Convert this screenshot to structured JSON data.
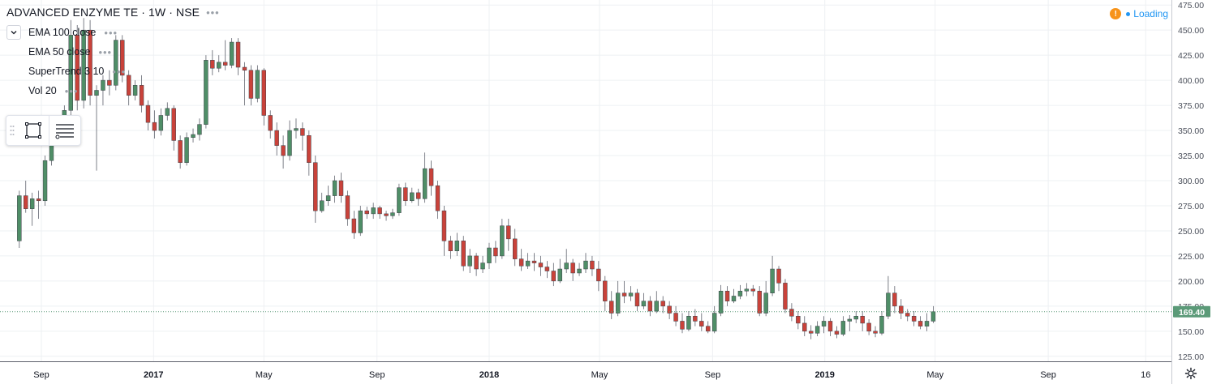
{
  "header": {
    "symbol_title": "ADVANCED ENZYME TE · 1W · NSE",
    "menu_dots": "•••"
  },
  "indicators": [
    {
      "label": "EMA 100 close",
      "menu_dots": "•••"
    },
    {
      "label": "EMA 50 close",
      "menu_dots": "•••"
    },
    {
      "label": "SuperTrend 3 10",
      "menu_dots": "•••"
    },
    {
      "label": "Vol 20",
      "menu_dots": "•••"
    }
  ],
  "status": {
    "warning_glyph": "!",
    "loading_text": "Loading"
  },
  "icons": {
    "collapse": "chevron-down-icon",
    "drag": "drag-handle-icon",
    "rectangle": "rectangle-tool-icon",
    "lines": "object-tree-icon",
    "settings": "gear-icon"
  },
  "colors": {
    "up": "#4f8e67",
    "down": "#c9423a",
    "price_tag": "#5b9a78",
    "grid": "#eef0f3",
    "axis_text": "#4a4f5a"
  },
  "chart_data": {
    "type": "candlestick",
    "symbol": "ADVANCED ENZYME TE",
    "interval": "1W",
    "exchange": "NSE",
    "y_axis": {
      "ylim": [
        120,
        480
      ],
      "ticks": [
        "475.00",
        "450.00",
        "425.00",
        "400.00",
        "375.00",
        "350.00",
        "325.00",
        "300.00",
        "275.00",
        "250.00",
        "225.00",
        "200.00",
        "175.00",
        "150.00",
        "125.00"
      ]
    },
    "x_axis": {
      "labels": [
        "Sep",
        "2017",
        "May",
        "Sep",
        "2018",
        "May",
        "Sep",
        "2019",
        "May",
        "Sep",
        "16"
      ],
      "bold": [
        "2017",
        "2018",
        "2019"
      ],
      "label_dates": [
        "2016-09-01",
        "2017-01-01",
        "2017-05-01",
        "2017-09-01",
        "2018-01-01",
        "2018-05-01",
        "2018-09-01",
        "2019-01-01",
        "2019-05-01",
        "2019-09-01",
        "2019-12-16"
      ],
      "range": [
        "2016-07-18",
        "2020-01-13"
      ]
    },
    "last_price": 169.4,
    "last_price_label": "169.40",
    "first_candle_date": "2016-08-08",
    "candles": [
      [
        240,
        285,
        233,
        290
      ],
      [
        285,
        272,
        268,
        300
      ],
      [
        272,
        282,
        255,
        288
      ],
      [
        282,
        280,
        262,
        290
      ],
      [
        280,
        320,
        275,
        325
      ],
      [
        320,
        340,
        315,
        345
      ],
      [
        340,
        355,
        335,
        360
      ],
      [
        355,
        370,
        350,
        375
      ],
      [
        370,
        445,
        365,
        460
      ],
      [
        445,
        380,
        370,
        455
      ],
      [
        380,
        450,
        372,
        462
      ],
      [
        450,
        385,
        375,
        460
      ],
      [
        385,
        390,
        310,
        395
      ],
      [
        390,
        400,
        375,
        405
      ],
      [
        400,
        395,
        385,
        410
      ],
      [
        395,
        440,
        390,
        445
      ],
      [
        440,
        405,
        398,
        445
      ],
      [
        405,
        385,
        375,
        410
      ],
      [
        385,
        395,
        380,
        400
      ],
      [
        395,
        375,
        368,
        405
      ],
      [
        375,
        358,
        350,
        380
      ],
      [
        358,
        350,
        342,
        370
      ],
      [
        350,
        365,
        345,
        372
      ],
      [
        365,
        372,
        360,
        378
      ],
      [
        372,
        340,
        330,
        375
      ],
      [
        340,
        318,
        312,
        345
      ],
      [
        318,
        343,
        315,
        348
      ],
      [
        343,
        346,
        338,
        352
      ],
      [
        346,
        356,
        340,
        362
      ],
      [
        356,
        420,
        352,
        425
      ],
      [
        420,
        412,
        405,
        430
      ],
      [
        412,
        418,
        408,
        425
      ],
      [
        418,
        415,
        410,
        440
      ],
      [
        415,
        438,
        412,
        442
      ],
      [
        438,
        413,
        405,
        442
      ],
      [
        413,
        410,
        375,
        418
      ],
      [
        410,
        382,
        375,
        415
      ],
      [
        382,
        410,
        378,
        415
      ],
      [
        410,
        365,
        355,
        412
      ],
      [
        365,
        350,
        342,
        370
      ],
      [
        350,
        335,
        325,
        358
      ],
      [
        335,
        325,
        312,
        345
      ],
      [
        325,
        350,
        320,
        360
      ],
      [
        350,
        352,
        342,
        362
      ],
      [
        352,
        345,
        330,
        358
      ],
      [
        345,
        318,
        305,
        350
      ],
      [
        318,
        270,
        258,
        325
      ],
      [
        270,
        280,
        268,
        288
      ],
      [
        280,
        285,
        275,
        295
      ],
      [
        285,
        300,
        278,
        305
      ],
      [
        300,
        285,
        278,
        308
      ],
      [
        285,
        262,
        255,
        290
      ],
      [
        262,
        248,
        242,
        270
      ],
      [
        248,
        270,
        245,
        275
      ],
      [
        270,
        267,
        262,
        274
      ],
      [
        267,
        273,
        262,
        278
      ],
      [
        273,
        267,
        262,
        275
      ],
      [
        267,
        265,
        260,
        270
      ],
      [
        265,
        268,
        262,
        272
      ],
      [
        268,
        293,
        265,
        297
      ],
      [
        293,
        280,
        275,
        298
      ],
      [
        280,
        288,
        278,
        293
      ],
      [
        288,
        282,
        275,
        292
      ],
      [
        282,
        312,
        278,
        328
      ],
      [
        312,
        295,
        285,
        320
      ],
      [
        295,
        270,
        262,
        300
      ],
      [
        270,
        240,
        225,
        275
      ],
      [
        240,
        230,
        222,
        245
      ],
      [
        230,
        240,
        225,
        248
      ],
      [
        240,
        215,
        210,
        245
      ],
      [
        215,
        225,
        208,
        232
      ],
      [
        225,
        212,
        205,
        228
      ],
      [
        212,
        218,
        208,
        225
      ],
      [
        218,
        233,
        212,
        238
      ],
      [
        233,
        225,
        218,
        240
      ],
      [
        225,
        255,
        222,
        262
      ],
      [
        255,
        242,
        230,
        262
      ],
      [
        242,
        222,
        215,
        252
      ],
      [
        222,
        215,
        210,
        232
      ],
      [
        215,
        220,
        212,
        228
      ],
      [
        220,
        218,
        210,
        228
      ],
      [
        218,
        214,
        205,
        225
      ],
      [
        214,
        210,
        203,
        220
      ],
      [
        210,
        200,
        195,
        218
      ],
      [
        200,
        212,
        198,
        222
      ],
      [
        212,
        218,
        208,
        232
      ],
      [
        218,
        208,
        200,
        222
      ],
      [
        208,
        212,
        205,
        218
      ],
      [
        212,
        220,
        208,
        228
      ],
      [
        220,
        212,
        205,
        225
      ],
      [
        212,
        200,
        190,
        220
      ],
      [
        200,
        180,
        170,
        205
      ],
      [
        180,
        168,
        162,
        190
      ],
      [
        168,
        188,
        165,
        200
      ],
      [
        188,
        185,
        178,
        200
      ],
      [
        185,
        188,
        180,
        195
      ],
      [
        188,
        175,
        170,
        192
      ],
      [
        175,
        180,
        172,
        188
      ],
      [
        180,
        170,
        165,
        185
      ],
      [
        170,
        180,
        168,
        190
      ],
      [
        180,
        175,
        168,
        185
      ],
      [
        175,
        168,
        162,
        180
      ],
      [
        168,
        160,
        155,
        175
      ],
      [
        160,
        152,
        148,
        168
      ],
      [
        152,
        165,
        150,
        170
      ],
      [
        165,
        160,
        155,
        172
      ],
      [
        160,
        155,
        150,
        168
      ],
      [
        155,
        150,
        148,
        160
      ],
      [
        150,
        168,
        148,
        175
      ],
      [
        168,
        190,
        165,
        196
      ],
      [
        190,
        180,
        175,
        195
      ],
      [
        180,
        185,
        178,
        192
      ],
      [
        185,
        190,
        182,
        196
      ],
      [
        190,
        192,
        185,
        198
      ],
      [
        192,
        190,
        185,
        196
      ],
      [
        190,
        168,
        165,
        195
      ],
      [
        168,
        188,
        165,
        200
      ],
      [
        188,
        212,
        185,
        225
      ],
      [
        212,
        198,
        190,
        215
      ],
      [
        198,
        172,
        168,
        202
      ],
      [
        172,
        165,
        160,
        178
      ],
      [
        165,
        158,
        152,
        170
      ],
      [
        158,
        150,
        145,
        165
      ],
      [
        150,
        148,
        142,
        156
      ],
      [
        148,
        155,
        145,
        160
      ],
      [
        155,
        160,
        148,
        165
      ],
      [
        160,
        150,
        145,
        163
      ],
      [
        150,
        147,
        143,
        155
      ],
      [
        147,
        160,
        145,
        165
      ],
      [
        160,
        162,
        150,
        166
      ],
      [
        162,
        165,
        158,
        170
      ],
      [
        165,
        158,
        150,
        170
      ],
      [
        158,
        150,
        146,
        162
      ],
      [
        150,
        148,
        144,
        155
      ],
      [
        148,
        165,
        146,
        170
      ],
      [
        165,
        188,
        162,
        205
      ],
      [
        188,
        175,
        168,
        195
      ],
      [
        175,
        168,
        162,
        182
      ],
      [
        168,
        165,
        160,
        172
      ],
      [
        165,
        160,
        155,
        170
      ],
      [
        160,
        155,
        152,
        165
      ],
      [
        155,
        160,
        150,
        168
      ],
      [
        160,
        169.4,
        158,
        175
      ]
    ]
  }
}
